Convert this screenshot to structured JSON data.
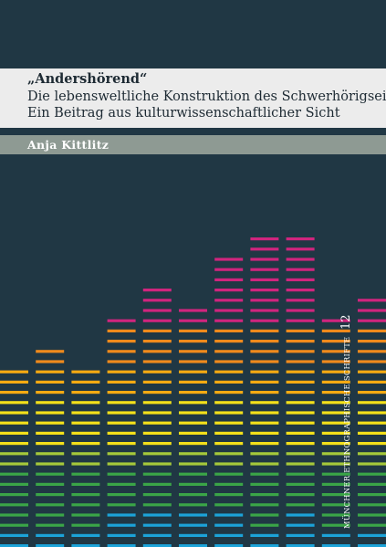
{
  "cover": {
    "title": "„Andershörend“",
    "subtitle_line1": "Die lebensweltliche Konstruktion des Schwerhörigseins",
    "subtitle_line2": "Ein Beitrag aus kulturwissenschaftlicher Sicht",
    "author": "Anja Kittlitz",
    "series_number": "12",
    "series_name": "MÜNCHNER ETHNOGRAPHISCHE SCHRIFTEN"
  },
  "colors": {
    "background": "#203744",
    "title_band": "#ececec",
    "author_band": "#8e9a93",
    "magenta": "#d0257e",
    "orange": "#f08a1c",
    "amber": "#f5aa12",
    "yellow": "#f4e11a",
    "lime": "#a5c93a",
    "green": "#3aa547",
    "cyan": "#1ca3d8"
  },
  "equalizer": {
    "levels": [
      18,
      20,
      18,
      23,
      26,
      24,
      29,
      31,
      31,
      23,
      25
    ],
    "bar_colors_bottom_to_top": [
      "cyan",
      "cyan",
      "cyan",
      "cyan",
      "green",
      "green",
      "green",
      "green",
      "lime",
      "lime",
      "yellow",
      "yellow",
      "yellow",
      "yellow",
      "yellow",
      "amber",
      "amber",
      "amber",
      "orange",
      "orange",
      "orange",
      "orange",
      "magenta",
      "magenta",
      "magenta",
      "magenta",
      "magenta",
      "magenta",
      "magenta",
      "magenta",
      "magenta"
    ],
    "highlight_cyan_columns": [
      3,
      4,
      5,
      6,
      8
    ]
  }
}
